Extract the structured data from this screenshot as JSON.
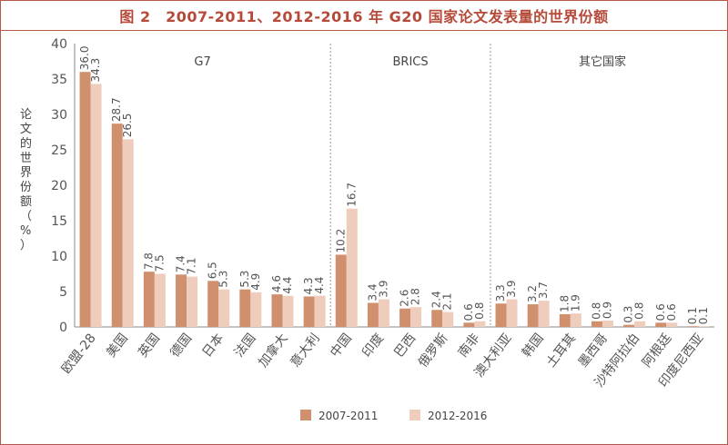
{
  "chart_data": {
    "type": "bar",
    "title": "图 2　2007-2011、2012-2016 年 G20 国家论文发表量的世界份额",
    "ylabel": "论文的世界份额（%）",
    "xlabel": "",
    "ylim": [
      0,
      40
    ],
    "yticks": [
      0,
      5,
      10,
      15,
      20,
      25,
      30,
      35,
      40
    ],
    "categories": [
      "欧盟-28",
      "美国",
      "英国",
      "德国",
      "日本",
      "法国",
      "加拿大",
      "意大利",
      "中国",
      "印度",
      "巴西",
      "俄罗斯",
      "南非",
      "澳大利亚",
      "韩国",
      "土耳其",
      "墨西哥",
      "沙特阿拉伯",
      "阿根廷",
      "印度尼西亚"
    ],
    "groups": [
      {
        "label": "G7",
        "start": 0,
        "end": 7
      },
      {
        "label": "BRICS",
        "start": 8,
        "end": 12
      },
      {
        "label": "其它国家",
        "start": 13,
        "end": 19
      }
    ],
    "series": [
      {
        "name": "2007-2011",
        "color": "#d1906d",
        "values": [
          36.0,
          28.7,
          7.8,
          7.4,
          6.5,
          5.3,
          4.6,
          4.3,
          10.2,
          3.4,
          2.6,
          2.4,
          0.6,
          3.3,
          3.2,
          1.8,
          0.8,
          0.3,
          0.6,
          0.1
        ]
      },
      {
        "name": "2012-2016",
        "color": "#efcdbc",
        "values": [
          34.3,
          26.5,
          7.5,
          7.1,
          5.3,
          4.9,
          4.4,
          4.4,
          16.7,
          3.9,
          2.8,
          2.1,
          0.8,
          3.9,
          3.7,
          1.9,
          0.9,
          0.8,
          0.6,
          0.1
        ]
      }
    ],
    "value_labels": [
      [
        "36.0",
        "28.7",
        "7.8",
        "7.4",
        "6.5",
        "5.3",
        "4.6",
        "4.3",
        "10.2",
        "3.4",
        "2.6",
        "2.4",
        "0.6",
        "3.3",
        "3.2",
        "1.8",
        "0.8",
        "0.3",
        "0.6",
        "0.1"
      ],
      [
        "34.3",
        "26.5",
        "7.5",
        "7.1",
        "5.3",
        "4.9",
        "4.4",
        "4.4",
        "16.7",
        "3.9",
        "2.8",
        "2.1",
        "0.8",
        "3.9",
        "3.7",
        "1.9",
        "0.9",
        "0.8",
        "0.6",
        "0.1"
      ]
    ],
    "grid": false,
    "legend_position": "bottom-center"
  }
}
